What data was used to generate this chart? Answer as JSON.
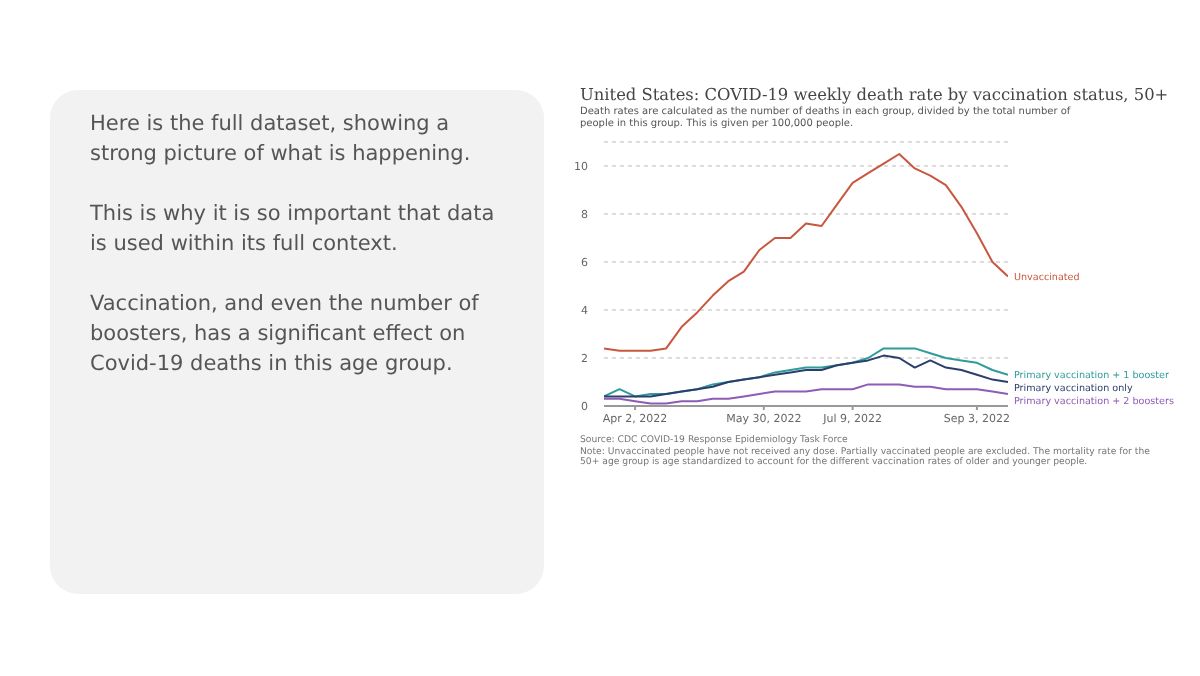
{
  "chart_data": [
    {
      "type": "other",
      "annotations": [
        "Here is the full dataset, showing a strong picture of what is happening.",
        "This is why it is so important that data is used within its full context.",
        "Vaccination, and even the number of boosters, has a significant effect on Covid-19 deaths in this age group."
      ]
    },
    {
      "type": "line",
      "title": "United States: COVID-19 weekly death rate by vaccination status, 50+",
      "subtitle": "Death rates are calculated as the number of deaths in each group, divided by the total number of people in this group. This is given per 100,000 people.",
      "x": [
        "2022-03-19",
        "2022-03-26",
        "2022-04-02",
        "2022-04-09",
        "2022-04-16",
        "2022-04-23",
        "2022-04-30",
        "2022-05-07",
        "2022-05-14",
        "2022-05-21",
        "2022-05-28",
        "2022-06-04",
        "2022-06-11",
        "2022-06-18",
        "2022-06-25",
        "2022-07-02",
        "2022-07-09",
        "2022-07-16",
        "2022-07-23",
        "2022-07-30",
        "2022-08-06",
        "2022-08-13",
        "2022-08-20",
        "2022-08-27",
        "2022-09-03",
        "2022-09-10",
        "2022-09-17"
      ],
      "xlim": [
        "2022-03-19",
        "2022-09-17"
      ],
      "xticks": [
        {
          "value": "2022-04-02",
          "label": "Apr 2, 2022"
        },
        {
          "value": "2022-05-30",
          "label": "May 30, 2022"
        },
        {
          "value": "2022-07-09",
          "label": "Jul 9, 2022"
        },
        {
          "value": "2022-09-03",
          "label": "Sep 3, 2022"
        }
      ],
      "ylim": [
        0,
        11
      ],
      "yticks": [
        0,
        2,
        4,
        6,
        8,
        10
      ],
      "grid": "y",
      "series": [
        {
          "name": "Unvaccinated",
          "color": "#c9573f",
          "values": [
            2.4,
            2.3,
            2.3,
            2.3,
            2.4,
            3.3,
            3.9,
            4.6,
            5.2,
            5.6,
            6.5,
            7.0,
            7.0,
            7.6,
            7.5,
            8.4,
            9.3,
            9.7,
            10.1,
            10.5,
            9.9,
            9.6,
            9.2,
            8.3,
            7.2,
            6.0,
            5.4
          ]
        },
        {
          "name": "Primary vaccination + 1 booster",
          "color": "#2e9c9b",
          "values": [
            0.4,
            0.7,
            0.4,
            0.5,
            0.5,
            0.6,
            0.7,
            0.9,
            1.0,
            1.1,
            1.2,
            1.4,
            1.5,
            1.6,
            1.6,
            1.7,
            1.8,
            2.0,
            2.4,
            2.4,
            2.4,
            2.2,
            2.0,
            1.9,
            1.8,
            1.5,
            1.3
          ]
        },
        {
          "name": "Primary vaccination only",
          "color": "#2c3e6b",
          "values": [
            0.4,
            0.4,
            0.4,
            0.4,
            0.5,
            0.6,
            0.7,
            0.8,
            1.0,
            1.1,
            1.2,
            1.3,
            1.4,
            1.5,
            1.5,
            1.7,
            1.8,
            1.9,
            2.1,
            2.0,
            1.6,
            1.9,
            1.6,
            1.5,
            1.3,
            1.1,
            1.0
          ]
        },
        {
          "name": "Primary vaccination + 2 boosters",
          "color": "#8e5bb5",
          "values": [
            0.3,
            0.3,
            0.2,
            0.1,
            0.1,
            0.2,
            0.2,
            0.3,
            0.3,
            0.4,
            0.5,
            0.6,
            0.6,
            0.6,
            0.7,
            0.7,
            0.7,
            0.9,
            0.9,
            0.9,
            0.8,
            0.8,
            0.7,
            0.7,
            0.7,
            0.6,
            0.5
          ]
        }
      ],
      "annotations": [
        "Source: CDC COVID-19 Response Epidemiology Task Force",
        "Note: Unvaccinated people have not received any dose. Partially vaccinated people are excluded. The mortality rate for the 50+ age group is age standardized to account for the different vaccination rates of older and younger people."
      ]
    }
  ]
}
